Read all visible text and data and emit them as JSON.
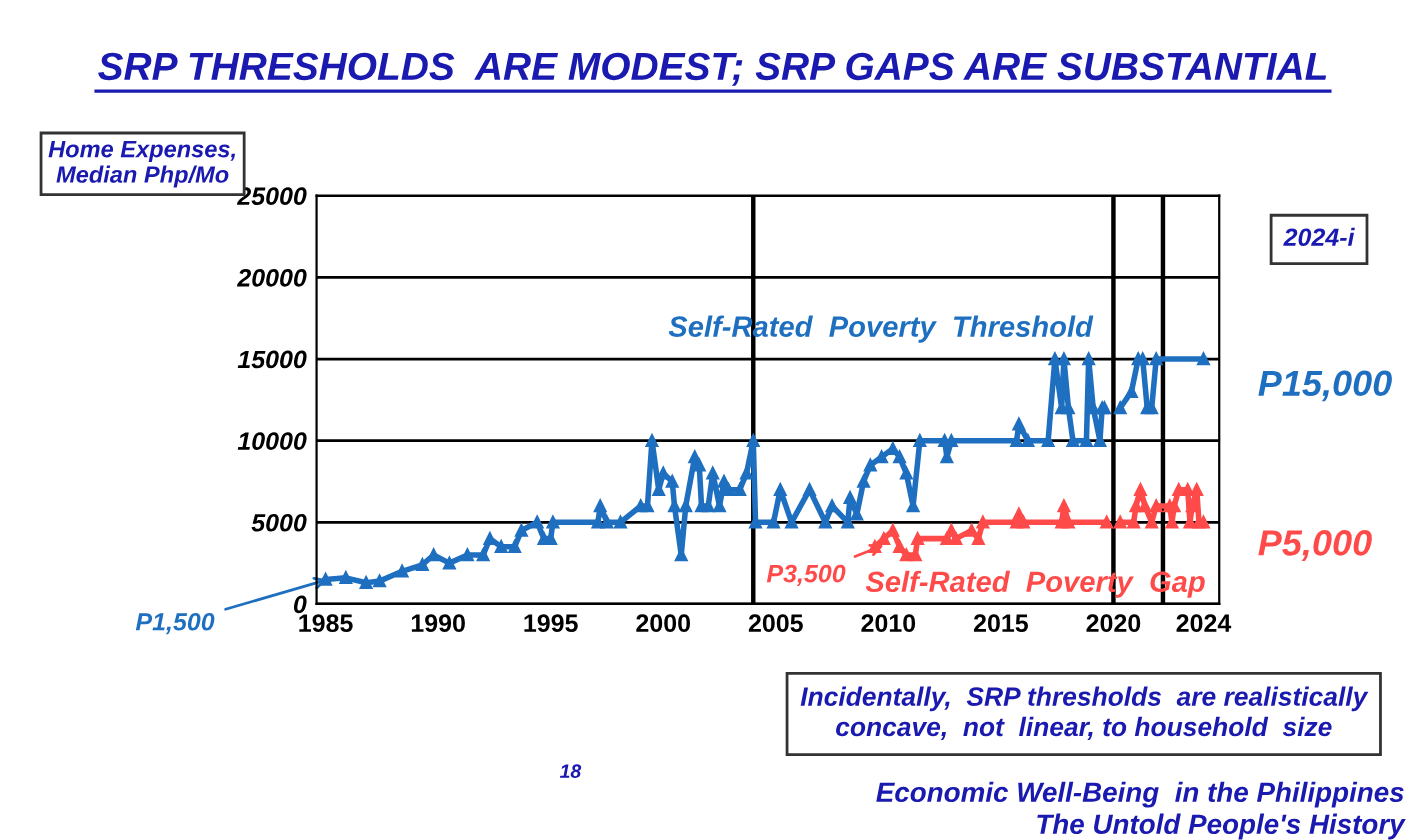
{
  "chart_data": {
    "type": "line",
    "title": "SRP THRESHOLDS  ARE MODEST; SRP GAPS ARE SUBSTANTIAL",
    "ylabel": "Home Expenses,\nMedian Php/Mo",
    "xlim": [
      1984.6,
      2024.7
    ],
    "xticks": [
      1985,
      1990,
      1995,
      2000,
      2005,
      2010,
      2015,
      2020,
      2024
    ],
    "ylim": [
      0,
      25000
    ],
    "yticks": [
      0,
      5000,
      10000,
      15000,
      20000,
      25000
    ],
    "grid": "y",
    "marker": "triangle",
    "line_style": "solid",
    "series": [
      {
        "name": "Self-Rated  Poverty  Threshold",
        "color": "#1f6fc0",
        "x": [
          1985.0,
          1985.9,
          1986.8,
          1987.4,
          1988.4,
          1989.3,
          1989.8,
          1990.5,
          1991.3,
          1992.0,
          1992.3,
          1992.8,
          1993.4,
          1993.7,
          1994.4,
          1994.7,
          1995.0,
          1995.1,
          1997.1,
          1997.2,
          1997.5,
          1998.1,
          1999.0,
          1999.3,
          1999.5,
          1999.8,
          2000.0,
          2000.4,
          2000.5,
          2000.8,
          2001.0,
          2001.4,
          2001.6,
          2001.7,
          2002.0,
          2002.2,
          2002.5,
          2002.7,
          2002.9,
          2003.4,
          2003.7,
          2004.0,
          2004.1,
          2004.9,
          2005.2,
          2005.7,
          2006.5,
          2007.2,
          2007.5,
          2008.2,
          2008.3,
          2008.6,
          2008.9,
          2009.2,
          2009.7,
          2010.2,
          2010.5,
          2010.8,
          2011.1,
          2011.4,
          2012.5,
          2012.6,
          2012.8,
          2015.7,
          2015.8,
          2016.2,
          2017.1,
          2017.4,
          2017.7,
          2017.8,
          2018.0,
          2018.2,
          2018.8,
          2018.9,
          2019.1,
          2019.4,
          2019.5,
          2019.6,
          2020.0,
          2020.3,
          2020.8,
          2021.1,
          2021.3,
          2021.5,
          2021.7,
          2021.9,
          2024.0
        ],
        "values": [
          1500,
          1600,
          1300,
          1400,
          2000,
          2400,
          3000,
          2500,
          3000,
          3000,
          4000,
          3500,
          3500,
          4500,
          5000,
          4000,
          4000,
          5000,
          5000,
          6000,
          5000,
          5000,
          6000,
          6000,
          10000,
          7000,
          8000,
          7500,
          6000,
          3000,
          6000,
          9000,
          8500,
          6000,
          6000,
          8000,
          6000,
          7500,
          7000,
          7000,
          8000,
          10000,
          5000,
          5000,
          7000,
          5000,
          7000,
          5000,
          6000,
          5000,
          6500,
          5500,
          7500,
          8500,
          9000,
          9500,
          9000,
          8000,
          6000,
          10000,
          10000,
          9000,
          10000,
          10000,
          11000,
          10000,
          10000,
          15000,
          12000,
          15000,
          12000,
          10000,
          10000,
          15000,
          12000,
          10000,
          12000,
          12000,
          null,
          12000,
          13000,
          15000,
          15000,
          12000,
          12000,
          15000,
          15000
        ]
      },
      {
        "name": "Self-Rated  Poverty  Gap",
        "color": "#ff4a4a",
        "x": [
          2009.4,
          2009.8,
          2010.2,
          2010.5,
          2010.8,
          2011.2,
          2011.3,
          2012.6,
          2012.8,
          2013.0,
          2013.7,
          2014.0,
          2014.2,
          2015.7,
          2015.8,
          2016.0,
          2017.7,
          2017.8,
          2018.0,
          2019.7,
          2020.0,
          2020.3,
          2020.9,
          2021.0,
          2021.2,
          2021.4,
          2021.7,
          2021.9,
          2022.5,
          2022.6,
          2022.7,
          2022.9,
          2023.3,
          2023.4,
          2023.5,
          2023.7,
          2023.8,
          2024.0
        ],
        "values": [
          3500,
          4000,
          4500,
          3500,
          3000,
          3000,
          4000,
          4000,
          4500,
          4000,
          4500,
          4000,
          5000,
          5000,
          5500,
          5000,
          5000,
          6000,
          5000,
          5000,
          null,
          5000,
          5000,
          6000,
          7000,
          6000,
          5000,
          6000,
          6000,
          5000,
          6000,
          7000,
          7000,
          5000,
          6000,
          7000,
          5000,
          5000
        ]
      }
    ],
    "ref_lines": [
      {
        "axis": "x",
        "value": 2004.0,
        "color": "#000000"
      },
      {
        "axis": "x",
        "value": 2020.0,
        "color": "#000000"
      },
      {
        "axis": "x",
        "value": 2022.2,
        "color": "#000000"
      }
    ],
    "annotations": [
      "P15,000",
      "P5,000",
      {
        "text": "P3,500",
        "x": 2009.8,
        "y": 3600
      },
      {
        "text": "P1,500",
        "x": 1985.1,
        "y": 1500
      },
      "2024-i",
      "Incidentally,  SRP thresholds  are realistically\nconcave,  not  linear, to household  size",
      "18",
      "Economic Well-Being  in the Philippines\nThe Untold People's History"
    ]
  }
}
